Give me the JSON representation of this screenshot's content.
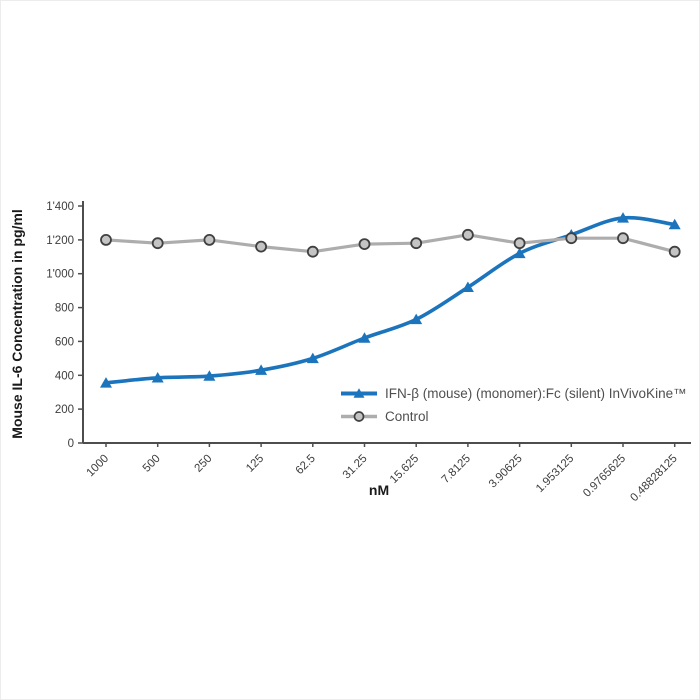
{
  "chart_data": {
    "type": "line",
    "title": "",
    "xlabel": "nM",
    "ylabel": "Mouse IL-6 Concentration in pg/ml",
    "categories": [
      "1000",
      "500",
      "250",
      "125",
      "62.5",
      "31.25",
      "15.625",
      "7.8125",
      "3.90625",
      "1.953125",
      "0.9765625",
      "0.48828125"
    ],
    "ylim": [
      0,
      1400
    ],
    "ytick_interval": 200,
    "ytick_labels": [
      "0",
      "200",
      "400",
      "600",
      "800",
      "1'000",
      "1'200",
      "1'400"
    ],
    "grid": false,
    "legend_position": "inside-bottom-right",
    "axis_color": "#4d4d4d",
    "series": [
      {
        "name": "IFN-β (mouse) (monomer):Fc (silent) InVivoKine™",
        "marker": "triangle",
        "smooth": true,
        "color": "#1C75BC",
        "values": [
          355,
          385,
          395,
          430,
          500,
          620,
          730,
          920,
          1120,
          1230,
          1330,
          1290
        ]
      },
      {
        "name": "Control",
        "marker": "circle",
        "smooth": false,
        "color": "#ADADAD",
        "marker_fill": "#C4C4C4",
        "marker_stroke": "#404040",
        "values": [
          1200,
          1180,
          1200,
          1160,
          1130,
          1175,
          1180,
          1230,
          1180,
          1210,
          1210,
          1130
        ]
      }
    ]
  }
}
